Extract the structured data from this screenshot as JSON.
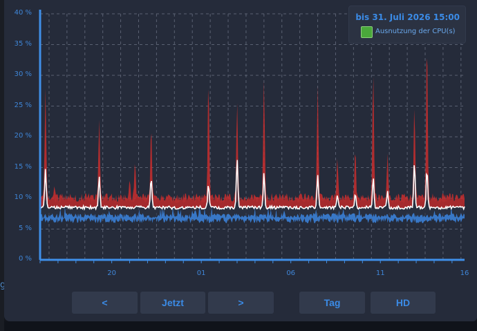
{
  "legend": {
    "range_label": "bis 31. Juli 2026 15:00",
    "series_name": "Ausnutzung der CPU(s)",
    "swatch_color": "#4aa83b"
  },
  "controls": {
    "prev_label": "<",
    "now_label": "Jetzt",
    "next_label": ">",
    "day_label": "Tag",
    "hd_label": "HD"
  },
  "edge_text": "g",
  "colors": {
    "max": "#c92e2e",
    "band": "#a42a2e",
    "avg": "#ffffff",
    "min": "#3b7fd6",
    "axis": "#3f8fe8",
    "grid": "#5a6172"
  },
  "chart_data": {
    "type": "area",
    "y_ticks": [
      "0 %",
      "5 %",
      "10 %",
      "15 %",
      "20 %",
      "25 %",
      "30 %",
      "35 %",
      "40 %"
    ],
    "ylim": [
      0,
      40
    ],
    "x_ticks": [
      "20",
      "01",
      "06",
      "11",
      "16"
    ],
    "x_tick_positions": [
      4.0,
      9.0,
      14.0,
      19.0,
      23.7
    ],
    "xlim": [
      0,
      23.7
    ],
    "grid": true,
    "legend_position": "top-right",
    "series": [
      {
        "name": "Ausnutzung der CPU(s)",
        "role": "max",
        "baseline": 10,
        "spikes": [
          [
            0.3,
            28
          ],
          [
            0.8,
            12
          ],
          [
            3.3,
            23
          ],
          [
            5.0,
            13
          ],
          [
            5.3,
            16
          ],
          [
            6.2,
            22
          ],
          [
            9.4,
            29.6
          ],
          [
            11.0,
            26
          ],
          [
            12.5,
            29.5
          ],
          [
            15.5,
            28.4
          ],
          [
            16.6,
            16.6
          ],
          [
            17.6,
            18.2
          ],
          [
            18.6,
            31
          ],
          [
            19.4,
            17.3
          ],
          [
            20.9,
            25.3
          ],
          [
            21.6,
            36.5
          ]
        ]
      },
      {
        "role": "avg",
        "baseline": 8.5,
        "spikes": [
          [
            0.3,
            14.8
          ],
          [
            3.3,
            13.6
          ],
          [
            6.2,
            13.4
          ],
          [
            9.4,
            12.4
          ],
          [
            11.0,
            16.5
          ],
          [
            12.5,
            14.2
          ],
          [
            15.5,
            13.8
          ],
          [
            16.6,
            10.5
          ],
          [
            17.6,
            10.8
          ],
          [
            18.6,
            13.5
          ],
          [
            19.4,
            11.2
          ],
          [
            20.9,
            15.8
          ],
          [
            21.6,
            14.8
          ]
        ]
      },
      {
        "role": "min",
        "baseline": 7.2,
        "spikes": []
      }
    ]
  }
}
